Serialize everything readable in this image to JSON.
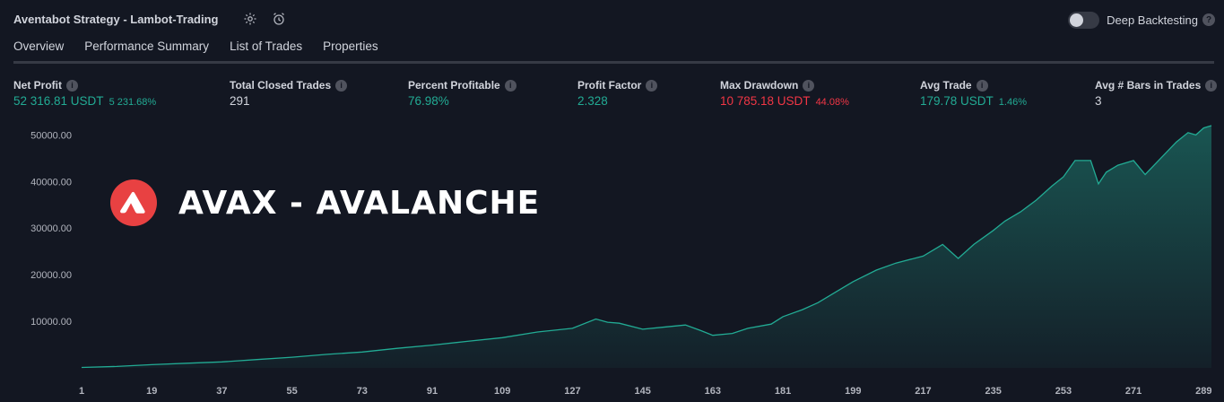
{
  "header": {
    "title": "Aventabot Strategy - Lambot-Trading",
    "deep_backtesting_label": "Deep Backtesting",
    "deep_backtesting_enabled": false,
    "help_glyph": "?"
  },
  "tabs": [
    {
      "label": "Overview",
      "active": true
    },
    {
      "label": "Performance Summary",
      "active": false
    },
    {
      "label": "List of Trades",
      "active": false
    },
    {
      "label": "Properties",
      "active": false
    }
  ],
  "metrics": [
    {
      "label": "Net Profit",
      "value": "52 316.81 USDT",
      "pct": "5 231.68%",
      "tone": "green"
    },
    {
      "label": "Total Closed Trades",
      "value": "291",
      "pct": "",
      "tone": "plain"
    },
    {
      "label": "Percent Profitable",
      "value": "76.98%",
      "pct": "",
      "tone": "green"
    },
    {
      "label": "Profit Factor",
      "value": "2.328",
      "pct": "",
      "tone": "green"
    },
    {
      "label": "Max Drawdown",
      "value": "10 785.18 USDT",
      "pct": "44.08%",
      "tone": "red"
    },
    {
      "label": "Avg Trade",
      "value": "179.78 USDT",
      "pct": "1.46%",
      "tone": "green"
    },
    {
      "label": "Avg # Bars in Trades",
      "value": "3",
      "pct": "",
      "tone": "plain"
    }
  ],
  "overlay": {
    "text": "AVAX - AVALANCHE",
    "logo_color": "#e84142"
  },
  "colors": {
    "background": "#131722",
    "line": "#22ab94",
    "positive": "#22ab94",
    "negative": "#f23645"
  },
  "chart_data": {
    "type": "area",
    "y_ticks": [
      "10000.00",
      "20000.00",
      "30000.00",
      "40000.00",
      "50000.00"
    ],
    "x_ticks": [
      "1",
      "19",
      "37",
      "55",
      "73",
      "91",
      "109",
      "127",
      "145",
      "163",
      "181",
      "199",
      "217",
      "235",
      "253",
      "271",
      "289"
    ],
    "xlim": [
      1,
      291
    ],
    "ylim": [
      0,
      52000
    ],
    "x": [
      1,
      10,
      19,
      28,
      37,
      46,
      55,
      64,
      73,
      82,
      91,
      100,
      109,
      118,
      127,
      133,
      136,
      139,
      145,
      151,
      156,
      160,
      163,
      168,
      172,
      178,
      181,
      186,
      190,
      195,
      199,
      205,
      210,
      217,
      222,
      226,
      230,
      235,
      238,
      242,
      246,
      250,
      253,
      256,
      260,
      262,
      264,
      267,
      271,
      274,
      278,
      282,
      285,
      287,
      289,
      291
    ],
    "y": [
      100,
      300,
      700,
      1000,
      1300,
      1800,
      2300,
      2900,
      3400,
      4200,
      4900,
      5700,
      6500,
      7700,
      8500,
      10500,
      9800,
      9600,
      8300,
      8800,
      9200,
      8000,
      7000,
      7400,
      8500,
      9400,
      11000,
      12500,
      14000,
      16500,
      18500,
      21000,
      22500,
      24000,
      26500,
      23500,
      26500,
      29500,
      31500,
      33500,
      36000,
      39000,
      41000,
      44500,
      44500,
      39500,
      42000,
      43500,
      44500,
      41500,
      45000,
      48500,
      50500,
      50000,
      51500,
      52000
    ]
  }
}
